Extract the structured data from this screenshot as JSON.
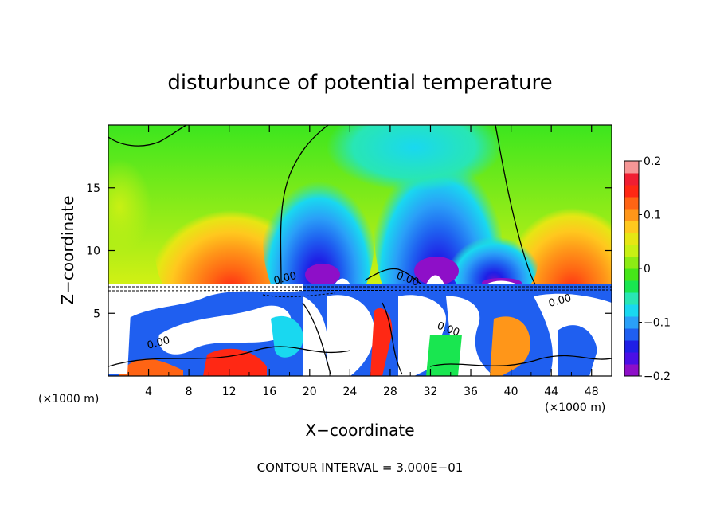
{
  "chart_data": {
    "type": "heatmap",
    "title": "disturbunce of potential temperature",
    "xlabel": "X−coordinate",
    "ylabel": "Z−coordinate",
    "x_unit_left": "(×1000 m)",
    "x_unit_right": "(×1000 m)",
    "xlim": [
      0,
      50
    ],
    "ylim": [
      0,
      20
    ],
    "x_ticks": [
      4,
      8,
      12,
      16,
      20,
      24,
      28,
      32,
      36,
      40,
      44,
      48
    ],
    "x_tick_labels": [
      "4",
      "8",
      "12",
      "16",
      "20",
      "24",
      "28",
      "32",
      "36",
      "40",
      "44",
      "48"
    ],
    "y_ticks": [
      5,
      10,
      15
    ],
    "y_tick_labels": [
      "5",
      "10",
      "15"
    ],
    "colorbar": {
      "range": [
        -0.2,
        0.2
      ],
      "ticks": [
        0.2,
        0.1,
        0,
        -0.1,
        -0.2
      ],
      "tick_labels": [
        "0.2",
        "0.1",
        "0",
        "−0.1",
        "−0.2"
      ],
      "colors": [
        "#8e0fc8",
        "#4b0fe6",
        "#1f1fe6",
        "#1f5ff0",
        "#2aa0f8",
        "#19d8f0",
        "#28e6b4",
        "#19e650",
        "#46e619",
        "#8ceb14",
        "#c8f014",
        "#e6e614",
        "#ffc81e",
        "#ff9619",
        "#ff6414",
        "#ff2814",
        "#f01e32",
        "#f59696"
      ]
    },
    "contour_labels": [
      "0.00",
      "0.00",
      "0.00",
      "0.00",
      "0.00"
    ],
    "contour_interval_text": "CONTOUR INTERVAL = 3.000E−01",
    "field_features": [
      {
        "x": 11,
        "z": 9.5,
        "value": 0.17
      },
      {
        "x": 21,
        "z": 10.5,
        "value": -0.18
      },
      {
        "x": 33,
        "z": 11.5,
        "value": -0.18
      },
      {
        "x": 46,
        "z": 10,
        "value": 0.16
      },
      {
        "x": 2,
        "z": 16,
        "value": 0.04
      },
      {
        "x": 30,
        "z": 17,
        "value": -0.07
      }
    ]
  }
}
